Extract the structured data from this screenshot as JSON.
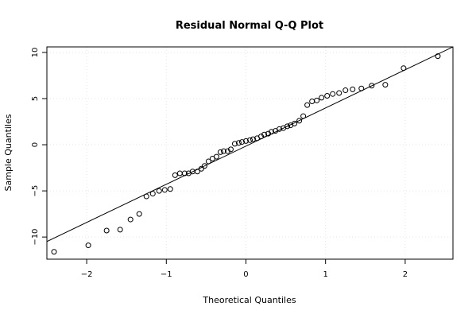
{
  "chart_data": {
    "type": "scatter",
    "title": "Residual Normal Q-Q Plot",
    "xlabel": "Theoretical Quantiles",
    "ylabel": "Sample Quantiles",
    "xlim": [
      -2.5,
      2.6
    ],
    "ylim": [
      -12.4,
      10.6
    ],
    "xticks": [
      -2,
      -1,
      0,
      1,
      2
    ],
    "yticks": [
      -10,
      -5,
      0,
      5,
      10
    ],
    "grid": true,
    "reference_line": {
      "from": [
        -2.6,
        -10.9
      ],
      "to": [
        2.6,
        10.6
      ]
    },
    "points": [
      [
        -2.41,
        -11.6
      ],
      [
        -1.98,
        -10.9
      ],
      [
        -1.75,
        -9.3
      ],
      [
        -1.58,
        -9.2
      ],
      [
        -1.45,
        -8.1
      ],
      [
        -1.34,
        -7.5
      ],
      [
        -1.25,
        -5.6
      ],
      [
        -1.17,
        -5.3
      ],
      [
        -1.09,
        -5.0
      ],
      [
        -1.02,
        -4.9
      ],
      [
        -0.95,
        -4.8
      ],
      [
        -0.89,
        -3.3
      ],
      [
        -0.83,
        -3.1
      ],
      [
        -0.77,
        -3.1
      ],
      [
        -0.72,
        -3.1
      ],
      [
        -0.67,
        -2.9
      ],
      [
        -0.61,
        -2.9
      ],
      [
        -0.56,
        -2.6
      ],
      [
        -0.52,
        -2.3
      ],
      [
        -0.47,
        -1.8
      ],
      [
        -0.42,
        -1.5
      ],
      [
        -0.37,
        -1.3
      ],
      [
        -0.32,
        -0.8
      ],
      [
        -0.28,
        -0.7
      ],
      [
        -0.23,
        -0.7
      ],
      [
        -0.19,
        -0.5
      ],
      [
        -0.14,
        0.1
      ],
      [
        -0.09,
        0.2
      ],
      [
        -0.05,
        0.3
      ],
      [
        0.0,
        0.4
      ],
      [
        0.05,
        0.5
      ],
      [
        0.09,
        0.6
      ],
      [
        0.14,
        0.7
      ],
      [
        0.19,
        0.9
      ],
      [
        0.23,
        1.1
      ],
      [
        0.28,
        1.2
      ],
      [
        0.32,
        1.4
      ],
      [
        0.37,
        1.5
      ],
      [
        0.42,
        1.7
      ],
      [
        0.47,
        1.8
      ],
      [
        0.52,
        2.0
      ],
      [
        0.56,
        2.1
      ],
      [
        0.61,
        2.3
      ],
      [
        0.67,
        2.6
      ],
      [
        0.72,
        3.1
      ],
      [
        0.77,
        4.3
      ],
      [
        0.83,
        4.7
      ],
      [
        0.89,
        4.8
      ],
      [
        0.95,
        5.1
      ],
      [
        1.02,
        5.3
      ],
      [
        1.09,
        5.5
      ],
      [
        1.17,
        5.6
      ],
      [
        1.25,
        5.9
      ],
      [
        1.34,
        6.0
      ],
      [
        1.45,
        6.1
      ],
      [
        1.58,
        6.4
      ],
      [
        1.75,
        6.5
      ],
      [
        1.98,
        8.3
      ],
      [
        2.41,
        9.6
      ]
    ]
  }
}
